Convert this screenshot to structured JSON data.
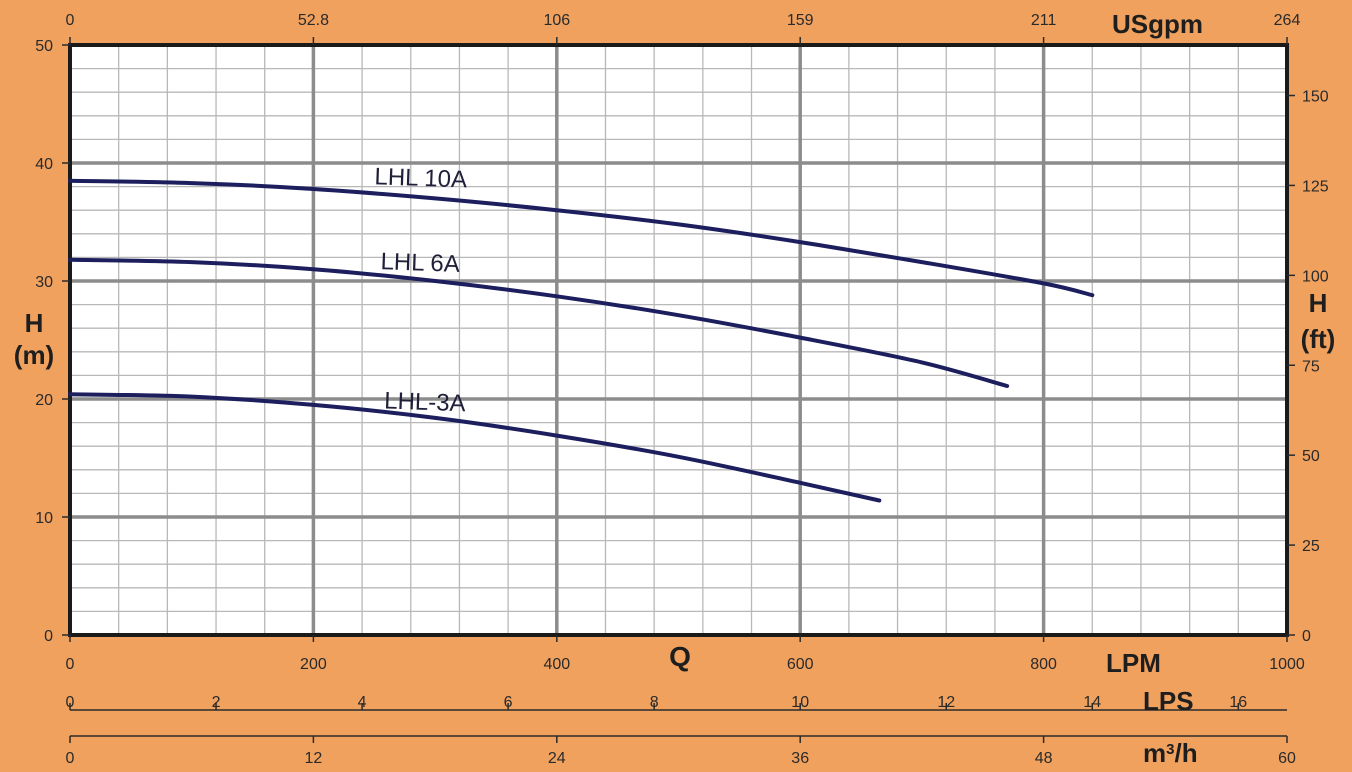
{
  "chart_data": {
    "type": "line",
    "title": "",
    "x": {
      "label": "Q",
      "unit": "LPM",
      "min": 0,
      "max": 1000,
      "ticks": [
        0,
        200,
        400,
        600,
        800,
        1000
      ]
    },
    "y": {
      "label": "H",
      "unit": "(m)",
      "min": 0,
      "max": 50,
      "ticks": [
        0,
        10,
        20,
        30,
        40,
        50
      ]
    },
    "x_top": {
      "unit": "USgpm",
      "tick_labels": [
        "0",
        "52.8",
        "106",
        "159",
        "211",
        "264"
      ],
      "lpm_positions": [
        0,
        200,
        400,
        600,
        800,
        1000
      ]
    },
    "y_right": {
      "label": "H",
      "unit": "(ft)",
      "tick_labels": [
        "0",
        "25",
        "50",
        "75",
        "100",
        "125",
        "150"
      ],
      "ft_values": [
        0,
        25,
        50,
        75,
        100,
        125,
        150
      ]
    },
    "x_lps": {
      "unit": "LPS",
      "tick_labels": [
        "0",
        "2",
        "4",
        "6",
        "8",
        "10",
        "12",
        "14",
        "16"
      ],
      "lps_values": [
        0,
        2,
        4,
        6,
        8,
        10,
        12,
        14,
        16
      ]
    },
    "x_m3h": {
      "unit_base": "m",
      "unit_sup": "3",
      "unit_tail": "/h",
      "tick_labels": [
        "0",
        "12",
        "24",
        "36",
        "48",
        "60"
      ],
      "m3h_values": [
        0,
        12,
        24,
        36,
        48,
        60
      ]
    },
    "grid": true,
    "series": [
      {
        "name": "LHL 10A",
        "color": "#1c1e5e",
        "points": [
          [
            0,
            38.5
          ],
          [
            100,
            38.3
          ],
          [
            200,
            37.8
          ],
          [
            300,
            37.0
          ],
          [
            400,
            36.0
          ],
          [
            500,
            34.8
          ],
          [
            600,
            33.3
          ],
          [
            700,
            31.6
          ],
          [
            800,
            29.8
          ],
          [
            840,
            28.8
          ]
        ],
        "label_at": [
          250,
          38.2
        ]
      },
      {
        "name": "LHL 6A",
        "color": "#1c1e5e",
        "points": [
          [
            0,
            31.8
          ],
          [
            100,
            31.6
          ],
          [
            200,
            31.0
          ],
          [
            300,
            30.0
          ],
          [
            400,
            28.7
          ],
          [
            500,
            27.1
          ],
          [
            600,
            25.2
          ],
          [
            700,
            23.1
          ],
          [
            770,
            21.1
          ]
        ],
        "label_at": [
          255,
          31.0
        ]
      },
      {
        "name": "LHL-3A",
        "color": "#1c1e5e",
        "points": [
          [
            0,
            20.4
          ],
          [
            100,
            20.2
          ],
          [
            200,
            19.5
          ],
          [
            300,
            18.4
          ],
          [
            400,
            16.9
          ],
          [
            500,
            15.1
          ],
          [
            600,
            12.9
          ],
          [
            665,
            11.4
          ]
        ],
        "label_at": [
          258,
          19.2
        ]
      }
    ]
  }
}
